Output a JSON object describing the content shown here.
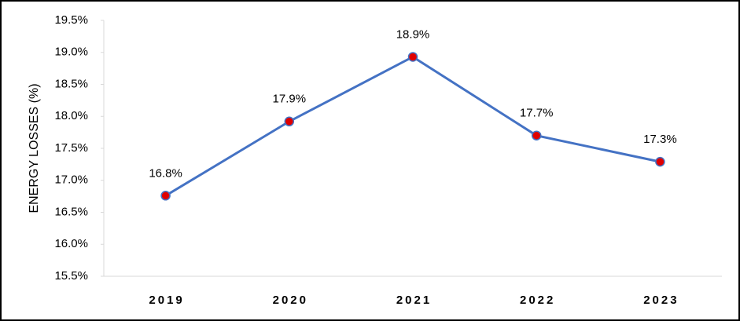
{
  "chart_data": {
    "type": "line",
    "y_label": "ENERGY LOSSES (%)",
    "categories": [
      "2019",
      "2020",
      "2021",
      "2022",
      "2023"
    ],
    "series": [
      {
        "color": "#4472c4",
        "marker_color": "#e00000",
        "values": [
          16.76,
          17.92,
          18.93,
          17.7,
          17.29
        ],
        "value_labels": [
          "16.8%",
          "17.9%",
          "18.9%",
          "17.7%",
          "17.3%"
        ]
      }
    ],
    "ylim": [
      15.5,
      19.5
    ],
    "yticks": [
      {
        "value": 15.5,
        "label": "15.5%"
      },
      {
        "value": 16,
        "label": "16.0%"
      },
      {
        "value": 16.5,
        "label": "16.5%"
      },
      {
        "value": 17,
        "label": "17.0%"
      },
      {
        "value": 17.5,
        "label": "17.5%"
      },
      {
        "value": 18,
        "label": "18.0%"
      },
      {
        "value": 18.5,
        "label": "18.5%"
      },
      {
        "value": 19,
        "label": "19.0%"
      },
      {
        "value": 19.5,
        "label": "19.5%"
      }
    ],
    "grid": false
  }
}
